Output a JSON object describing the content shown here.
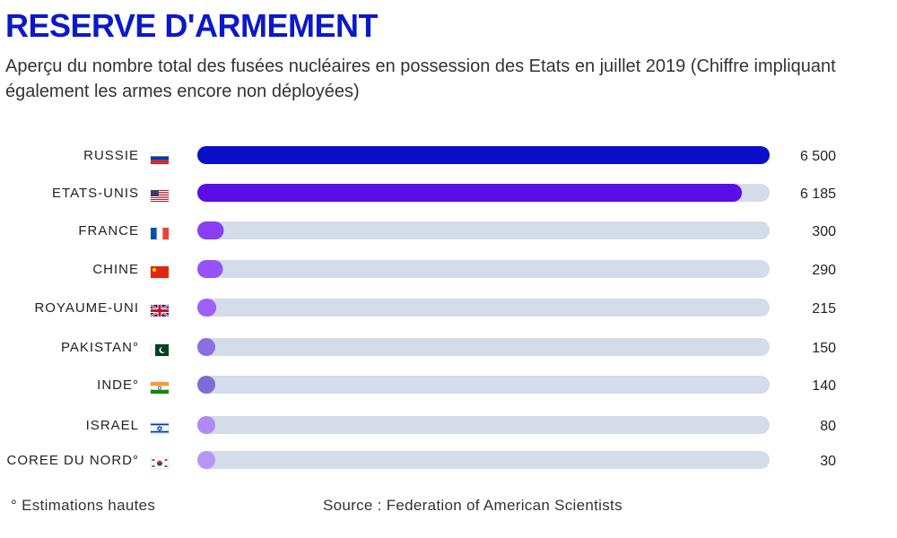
{
  "title": "RESERVE D'ARMEMENT",
  "subtitle": "Aperçu du nombre total des fusées nucléaires en possession des Etats en juillet 2019 (Chiffre impliquant également les armes encore non déployées)",
  "footnote": "° Estimations hautes",
  "source": "Source : Federation of American Scientists",
  "chart_data": {
    "type": "bar",
    "orientation": "horizontal",
    "categories": [
      "RUSSIE",
      "ETATS-UNIS",
      "FRANCE",
      "CHINE",
      "ROYAUME-UNI",
      "PAKISTAN°",
      "INDE°",
      "ISRAEL",
      "COREE DU NORD°"
    ],
    "values": [
      6500,
      6185,
      300,
      290,
      215,
      150,
      140,
      80,
      30
    ],
    "value_labels": [
      "6 500",
      "6 185",
      "300",
      "290",
      "215",
      "150",
      "140",
      "80",
      "30"
    ],
    "flag_icons": [
      "russia-flag-icon",
      "usa-flag-icon",
      "france-flag-icon",
      "china-flag-icon",
      "uk-flag-icon",
      "pakistan-flag-icon",
      "india-flag-icon",
      "israel-flag-icon",
      "korea-flag-icon"
    ],
    "bar_colors": [
      "#0b0fc9",
      "#5a0de6",
      "#8b3ef5",
      "#9652f7",
      "#a060f4",
      "#8a6fe0",
      "#7e6cd6",
      "#b08bf6",
      "#b896f7"
    ],
    "track_color": "#d3dce8",
    "xlim": [
      0,
      6500
    ],
    "grid": false,
    "legend": "none"
  }
}
